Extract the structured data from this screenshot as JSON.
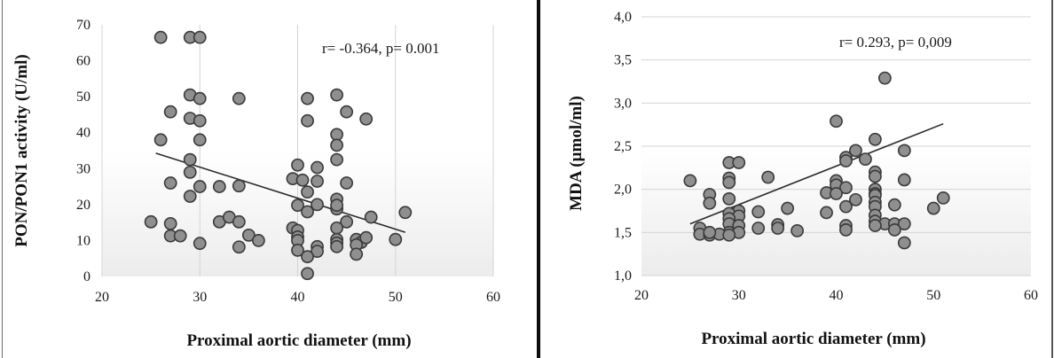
{
  "chart_data": [
    {
      "type": "scatter",
      "title": "",
      "xlabel": "Proximal aortic diameter (mm)",
      "ylabel": "PON/PON1 activity (U/ml)",
      "xlim": [
        20,
        60
      ],
      "ylim": [
        0,
        70
      ],
      "xticks": [
        "20",
        "30",
        "40",
        "50",
        "60"
      ],
      "yticks": [
        "0",
        "10",
        "20",
        "30",
        "40",
        "50",
        "60",
        "70"
      ],
      "grid": "vertical",
      "annotation": "r= -0.364, p= 0.001",
      "trendline": {
        "x": [
          25.5,
          51
        ],
        "y": [
          34.3,
          12.3
        ]
      },
      "points": [
        [
          26,
          66.5
        ],
        [
          29,
          66.5
        ],
        [
          30,
          66.5
        ],
        [
          29,
          50.5
        ],
        [
          30,
          49.5
        ],
        [
          34,
          49.5
        ],
        [
          41,
          49.5
        ],
        [
          44,
          50.5
        ],
        [
          27,
          45.8
        ],
        [
          29,
          44
        ],
        [
          30,
          43.3
        ],
        [
          41,
          43.3
        ],
        [
          45,
          45.8
        ],
        [
          47,
          43.8
        ],
        [
          26,
          38
        ],
        [
          30,
          38
        ],
        [
          44,
          39.5
        ],
        [
          44,
          36.5
        ],
        [
          29,
          32.5
        ],
        [
          44,
          32.5
        ],
        [
          29,
          29
        ],
        [
          40,
          31
        ],
        [
          42,
          30.3
        ],
        [
          34,
          25.2
        ],
        [
          27,
          26
        ],
        [
          30,
          25
        ],
        [
          32,
          25
        ],
        [
          39.5,
          27.2
        ],
        [
          40.5,
          26.8
        ],
        [
          41,
          23.5
        ],
        [
          42,
          26.5
        ],
        [
          45,
          26
        ],
        [
          29,
          22.3
        ],
        [
          44,
          21.5
        ],
        [
          40,
          19.8
        ],
        [
          41,
          18
        ],
        [
          44,
          18.8
        ],
        [
          44,
          19.8
        ],
        [
          42,
          20
        ],
        [
          45,
          15.2
        ],
        [
          47.5,
          16.5
        ],
        [
          51,
          17.8
        ],
        [
          25,
          15.2
        ],
        [
          27,
          14.7
        ],
        [
          32,
          15.2
        ],
        [
          33,
          16.5
        ],
        [
          34,
          15.2
        ],
        [
          39.5,
          13.5
        ],
        [
          40,
          12.8
        ],
        [
          44,
          13.5
        ],
        [
          27,
          11.3
        ],
        [
          28,
          11.3
        ],
        [
          35,
          11.5
        ],
        [
          36,
          10
        ],
        [
          40,
          11
        ],
        [
          40,
          10
        ],
        [
          44,
          10.3
        ],
        [
          44,
          9.3
        ],
        [
          46,
          10.3
        ],
        [
          46.5,
          9.5
        ],
        [
          47,
          10.8
        ],
        [
          50,
          10.3
        ],
        [
          30,
          9.2
        ],
        [
          34,
          8.2
        ],
        [
          40,
          7.3
        ],
        [
          42,
          8.3
        ],
        [
          42,
          7
        ],
        [
          44,
          8.3
        ],
        [
          46,
          8.8
        ],
        [
          41,
          5.5
        ],
        [
          46,
          6.2
        ],
        [
          41,
          0.8
        ]
      ]
    },
    {
      "type": "scatter",
      "title": "",
      "xlabel": "Proximal aortic diameter (mm)",
      "ylabel": "MDA (µmol/ml)",
      "xlim": [
        20,
        60
      ],
      "ylim": [
        1.0,
        4.0
      ],
      "xticks": [
        "20",
        "30",
        "40",
        "50",
        "60"
      ],
      "yticks": [
        "1,0",
        "1,5",
        "2,0",
        "2,5",
        "3,0",
        "3,5",
        "4,0"
      ],
      "grid": "horizontal",
      "annotation": "r= 0.293, p= 0,009",
      "trendline": {
        "x": [
          25,
          51
        ],
        "y": [
          1.6,
          2.76
        ]
      },
      "points": [
        [
          45,
          3.29
        ],
        [
          40,
          2.79
        ],
        [
          44,
          2.58
        ],
        [
          42,
          2.45
        ],
        [
          47,
          2.45
        ],
        [
          41,
          2.37
        ],
        [
          41,
          2.33
        ],
        [
          43,
          2.35
        ],
        [
          29,
          2.31
        ],
        [
          30,
          2.31
        ],
        [
          44,
          2.2
        ],
        [
          44,
          2.15
        ],
        [
          33,
          2.14
        ],
        [
          29,
          2.13
        ],
        [
          47,
          2.11
        ],
        [
          25,
          2.1
        ],
        [
          40,
          2.1
        ],
        [
          40,
          2.05
        ],
        [
          29,
          2.08
        ],
        [
          41,
          2.02
        ],
        [
          44,
          2.0
        ],
        [
          39,
          1.96
        ],
        [
          40,
          1.95
        ],
        [
          44,
          1.95
        ],
        [
          27,
          1.94
        ],
        [
          44,
          1.93
        ],
        [
          29,
          1.89
        ],
        [
          51,
          1.9
        ],
        [
          42,
          1.88
        ],
        [
          44,
          1.85
        ],
        [
          27,
          1.84
        ],
        [
          44,
          1.8
        ],
        [
          46,
          1.82
        ],
        [
          41,
          1.8
        ],
        [
          50,
          1.78
        ],
        [
          35,
          1.78
        ],
        [
          30,
          1.75
        ],
        [
          32,
          1.74
        ],
        [
          39,
          1.73
        ],
        [
          29,
          1.72
        ],
        [
          44,
          1.7
        ],
        [
          30,
          1.69
        ],
        [
          29,
          1.66
        ],
        [
          44,
          1.63
        ],
        [
          45,
          1.6
        ],
        [
          46,
          1.6
        ],
        [
          47,
          1.6
        ],
        [
          29,
          1.6
        ],
        [
          34,
          1.59
        ],
        [
          41,
          1.58
        ],
        [
          30,
          1.58
        ],
        [
          44,
          1.58
        ],
        [
          26,
          1.55
        ],
        [
          32,
          1.55
        ],
        [
          34,
          1.55
        ],
        [
          29,
          1.5
        ],
        [
          30,
          1.5
        ],
        [
          36,
          1.52
        ],
        [
          41,
          1.53
        ],
        [
          46,
          1.53
        ],
        [
          26,
          1.48
        ],
        [
          27,
          1.47
        ],
        [
          28,
          1.48
        ],
        [
          29,
          1.47
        ],
        [
          27,
          1.5
        ],
        [
          47,
          1.38
        ]
      ]
    }
  ]
}
